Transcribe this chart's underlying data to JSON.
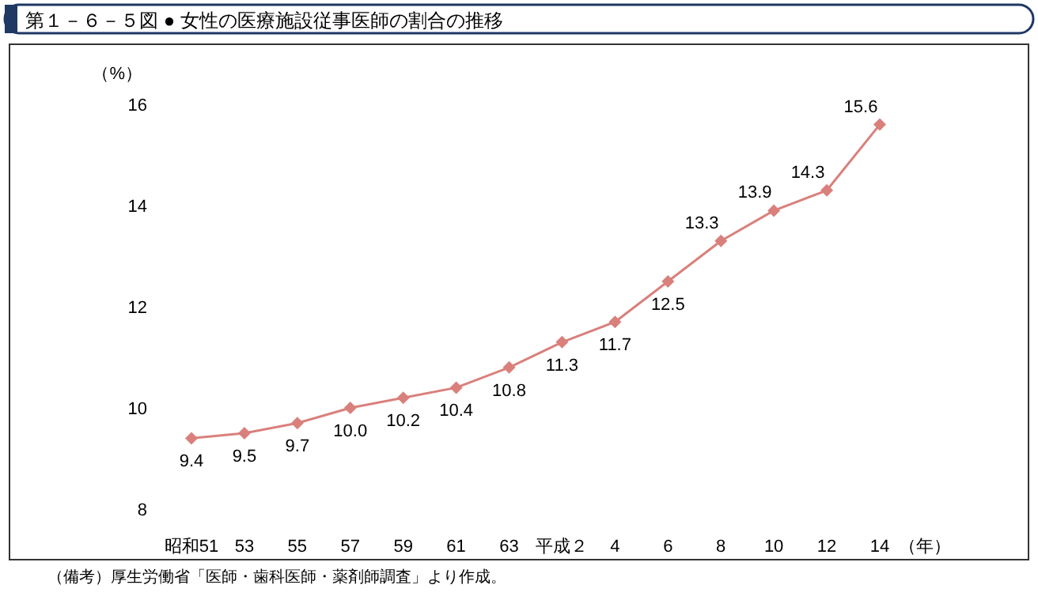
{
  "chart_data": {
    "type": "line",
    "title": "第１－６－５図 ● 女性の医療施設従事医師の割合の推移",
    "ylabel": "（%）",
    "xlabel": "（年）",
    "categories": [
      "昭和51",
      "53",
      "55",
      "57",
      "59",
      "61",
      "63",
      "平成２",
      "4",
      "6",
      "8",
      "10",
      "12",
      "14"
    ],
    "series": [
      {
        "color": "#d9807c",
        "values": [
          9.4,
          9.5,
          9.7,
          10.0,
          10.2,
          10.4,
          10.8,
          11.3,
          11.7,
          12.5,
          13.3,
          13.9,
          14.3,
          15.6
        ],
        "value_labels": [
          "9.4",
          "9.5",
          "9.7",
          "10.0",
          "10.2",
          "10.4",
          "10.8",
          "11.3",
          "11.7",
          "12.5",
          "13.3",
          "13.9",
          "14.3",
          "15.6"
        ]
      }
    ],
    "ylim": [
      8,
      16
    ],
    "yticks": [
      8,
      10,
      12,
      14,
      16
    ],
    "marker": "diamond",
    "grid": false,
    "annotations": [
      "（備考）厚生労働省「医師・歯科医師・薬剤師調査」より作成。"
    ]
  }
}
